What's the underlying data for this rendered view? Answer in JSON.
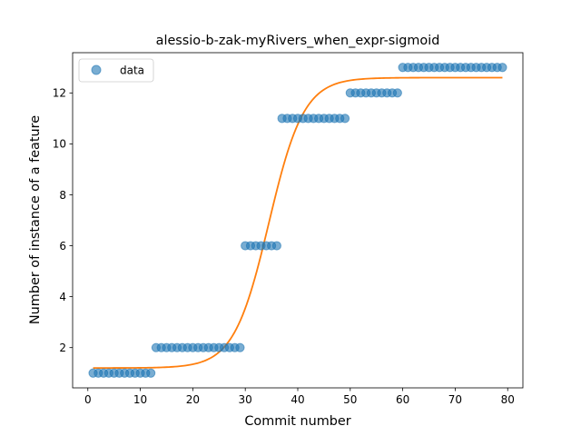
{
  "chart_data": {
    "type": "scatter",
    "title": "alessio-b-zak-myRivers_when_expr-sigmoid",
    "xlabel": "Commit number",
    "ylabel": "Number of instance of a feature",
    "xlim": [
      -2.9,
      82.9
    ],
    "ylim": [
      0.42,
      13.58
    ],
    "xticks": [
      0,
      10,
      20,
      30,
      40,
      50,
      60,
      70,
      80
    ],
    "yticks": [
      2,
      4,
      6,
      8,
      10,
      12
    ],
    "grid": false,
    "legend": {
      "placement": "top-left",
      "entries": [
        "data"
      ]
    },
    "series": [
      {
        "name": "data",
        "kind": "points",
        "color": "#1f77b4",
        "x": [
          1,
          2,
          3,
          4,
          5,
          6,
          7,
          8,
          9,
          10,
          11,
          12,
          13,
          14,
          15,
          16,
          17,
          18,
          19,
          20,
          21,
          22,
          23,
          24,
          25,
          26,
          27,
          28,
          29,
          30,
          31,
          32,
          33,
          34,
          35,
          36,
          37,
          38,
          39,
          40,
          41,
          42,
          43,
          44,
          45,
          46,
          47,
          48,
          49,
          50,
          51,
          52,
          53,
          54,
          55,
          56,
          57,
          58,
          59,
          60,
          61,
          62,
          63,
          64,
          65,
          66,
          67,
          68,
          69,
          70,
          71,
          72,
          73,
          74,
          75,
          76,
          77,
          78,
          79
        ],
        "y": [
          1,
          1,
          1,
          1,
          1,
          1,
          1,
          1,
          1,
          1,
          1,
          1,
          2,
          2,
          2,
          2,
          2,
          2,
          2,
          2,
          2,
          2,
          2,
          2,
          2,
          2,
          2,
          2,
          2,
          6,
          6,
          6,
          6,
          6,
          6,
          6,
          11,
          11,
          11,
          11,
          11,
          11,
          11,
          11,
          11,
          11,
          11,
          11,
          11,
          12,
          12,
          12,
          12,
          12,
          12,
          12,
          12,
          12,
          12,
          13,
          13,
          13,
          13,
          13,
          13,
          13,
          13,
          13,
          13,
          13,
          13,
          13,
          13,
          13,
          13,
          13,
          13,
          13,
          13
        ]
      },
      {
        "name": "",
        "kind": "line",
        "color": "#ff7f0e",
        "model": "sigmoid",
        "params": {
          "lower": 1.2,
          "upper": 12.6,
          "midpoint": 34.5,
          "rate": 0.3
        },
        "x_range": [
          1,
          79
        ]
      }
    ]
  }
}
